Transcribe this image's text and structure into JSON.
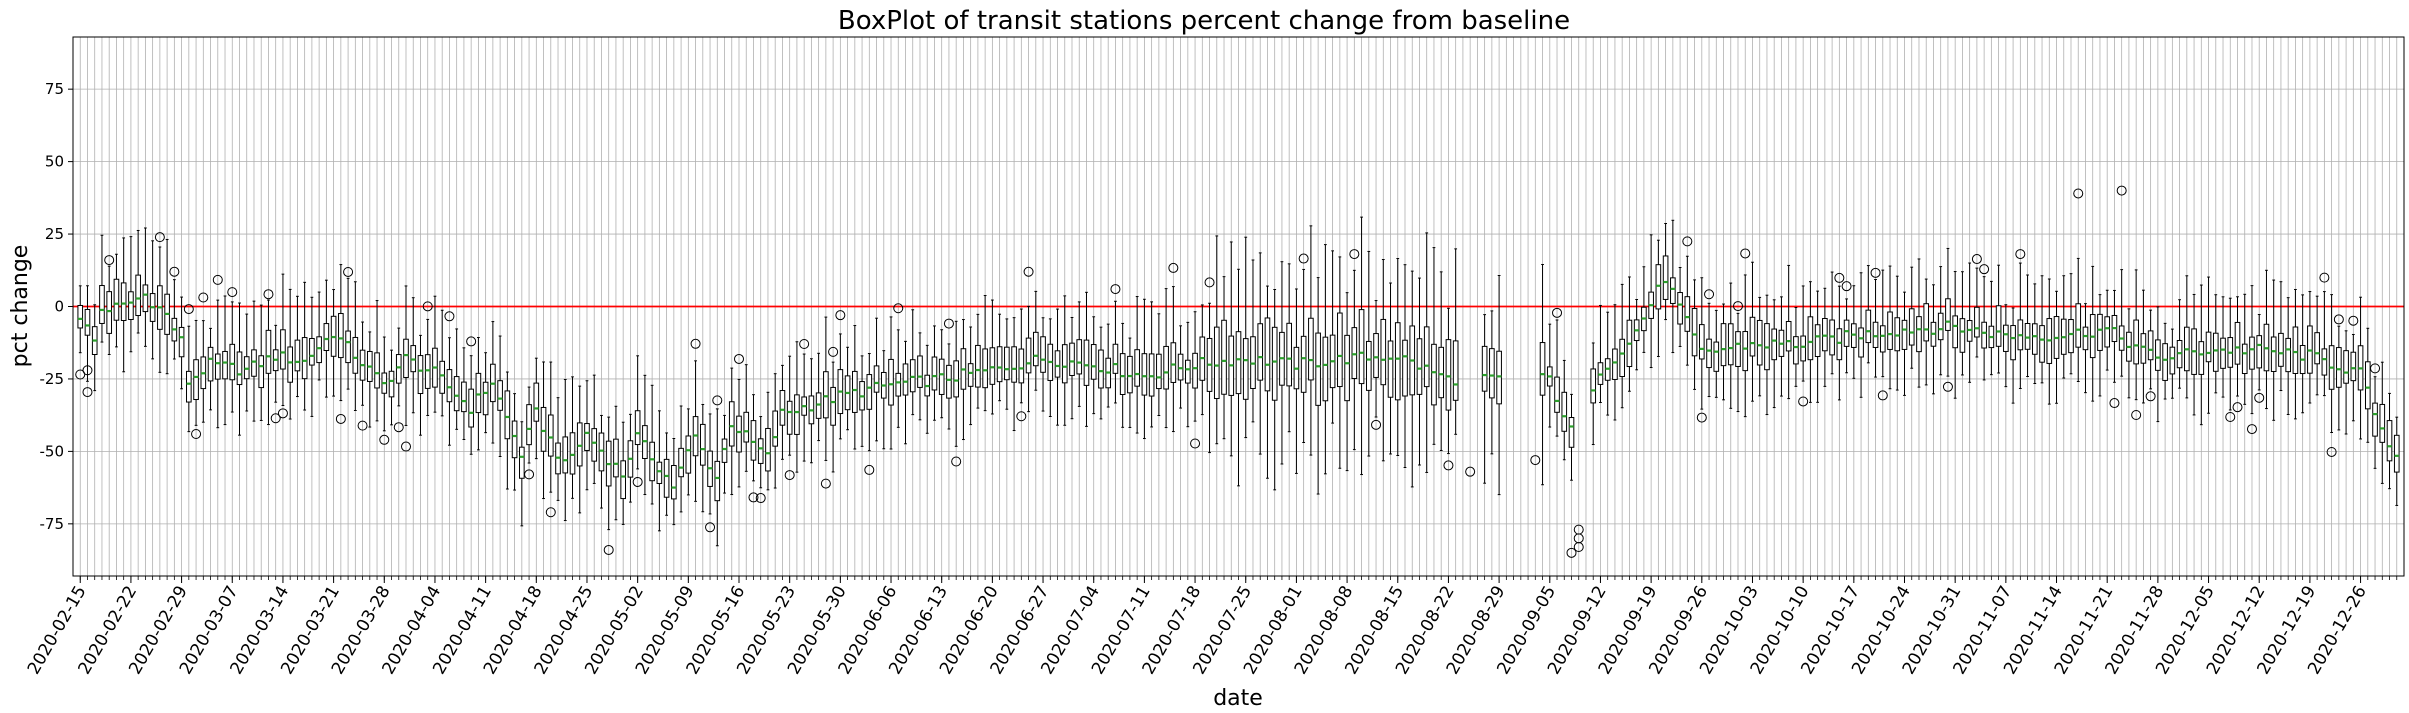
{
  "chart_data": {
    "type": "boxplot",
    "title": "BoxPlot of transit stations percent change from baseline",
    "xlabel": "date",
    "ylabel": "pct change",
    "ylim": [
      -93,
      93
    ],
    "yticks": [
      -75,
      -50,
      -25,
      0,
      25,
      50,
      75
    ],
    "grid": true,
    "reference_line": {
      "y": 0,
      "color": "#ff0000"
    },
    "box_color": "#000000",
    "median_color": "#2ca02c",
    "start_date": "2020-02-15",
    "end_date": "2020-12-31",
    "xtick_labels": [
      "2020-02-15",
      "2020-02-22",
      "2020-02-29",
      "2020-03-07",
      "2020-03-14",
      "2020-03-21",
      "2020-03-28",
      "2020-04-04",
      "2020-04-11",
      "2020-04-18",
      "2020-04-25",
      "2020-05-02",
      "2020-05-09",
      "2020-05-16",
      "2020-05-23",
      "2020-05-30",
      "2020-06-06",
      "2020-06-13",
      "2020-06-20",
      "2020-06-27",
      "2020-07-04",
      "2020-07-11",
      "2020-07-18",
      "2020-07-25",
      "2020-08-01",
      "2020-08-08",
      "2020-08-15",
      "2020-08-22",
      "2020-08-29",
      "2020-09-05",
      "2020-09-12",
      "2020-09-19",
      "2020-09-26",
      "2020-10-03",
      "2020-10-10",
      "2020-10-17",
      "2020-10-24",
      "2020-10-31",
      "2020-11-07",
      "2020-11-14",
      "2020-11-21",
      "2020-11-28",
      "2020-12-05",
      "2020-12-12",
      "2020-12-19",
      "2020-12-26"
    ],
    "missing_date_ranges": [
      [
        "2020-08-24",
        "2020-08-26"
      ],
      [
        "2020-08-30",
        "2020-09-03"
      ],
      [
        "2020-09-09",
        "2020-09-10"
      ]
    ],
    "median_profile": [
      [
        "2020-02-15",
        -3
      ],
      [
        "2020-02-17",
        -12
      ],
      [
        "2020-02-18",
        -1
      ],
      [
        "2020-02-21",
        0
      ],
      [
        "2020-02-24",
        4
      ],
      [
        "2020-02-27",
        -3
      ],
      [
        "2020-02-29",
        -12
      ],
      [
        "2020-03-01",
        -26
      ],
      [
        "2020-03-04",
        -20
      ],
      [
        "2020-03-09",
        -22
      ],
      [
        "2020-03-13",
        -17
      ],
      [
        "2020-03-17",
        -19
      ],
      [
        "2020-03-21",
        -9
      ],
      [
        "2020-03-28",
        -27
      ],
      [
        "2020-03-31",
        -18
      ],
      [
        "2020-04-04",
        -23
      ],
      [
        "2020-04-09",
        -35
      ],
      [
        "2020-04-12",
        -26
      ],
      [
        "2020-04-16",
        -51
      ],
      [
        "2020-04-18",
        -37
      ],
      [
        "2020-04-22",
        -55
      ],
      [
        "2020-04-25",
        -44
      ],
      [
        "2020-04-30",
        -58
      ],
      [
        "2020-05-02",
        -45
      ],
      [
        "2020-05-07",
        -62
      ],
      [
        "2020-05-10",
        -45
      ],
      [
        "2020-05-13",
        -59
      ],
      [
        "2020-05-15",
        -40
      ],
      [
        "2020-05-20",
        -52
      ],
      [
        "2020-05-22",
        -37
      ],
      [
        "2020-05-30",
        -31
      ],
      [
        "2020-06-06",
        -27
      ],
      [
        "2020-06-13",
        -25
      ],
      [
        "2020-06-20",
        -22
      ],
      [
        "2020-06-27",
        -18
      ],
      [
        "2020-07-04",
        -20
      ],
      [
        "2020-07-11",
        -24
      ],
      [
        "2020-07-18",
        -20
      ],
      [
        "2020-07-25",
        -18
      ],
      [
        "2020-08-01",
        -20
      ],
      [
        "2020-08-08",
        -18
      ],
      [
        "2020-08-15",
        -17
      ],
      [
        "2020-08-22",
        -25
      ],
      [
        "2020-08-29",
        -25
      ],
      [
        "2020-09-05",
        -25
      ],
      [
        "2020-09-08",
        -43
      ],
      [
        "2020-09-12",
        -22
      ],
      [
        "2020-09-16",
        -13
      ],
      [
        "2020-09-21",
        10
      ],
      [
        "2020-09-26",
        -16
      ],
      [
        "2020-10-03",
        -13
      ],
      [
        "2020-10-10",
        -13
      ],
      [
        "2020-10-17",
        -10
      ],
      [
        "2020-10-24",
        -8
      ],
      [
        "2020-10-31",
        -7
      ],
      [
        "2020-11-07",
        -10
      ],
      [
        "2020-11-14",
        -10
      ],
      [
        "2020-11-21",
        -8
      ],
      [
        "2020-11-28",
        -18
      ],
      [
        "2020-12-05",
        -15
      ],
      [
        "2020-12-12",
        -15
      ],
      [
        "2020-12-19",
        -17
      ],
      [
        "2020-12-26",
        -23
      ],
      [
        "2020-12-30",
        -50
      ]
    ],
    "highlighted_outliers": [
      [
        "2020-09-08",
        -85
      ],
      [
        "2020-09-09",
        -83
      ],
      [
        "2020-09-09",
        -80
      ],
      [
        "2020-09-09",
        -77
      ],
      [
        "2020-11-17",
        39
      ],
      [
        "2020-11-23",
        40
      ],
      [
        "2020-02-16",
        -22
      ],
      [
        "2020-03-02",
        -44
      ],
      [
        "2020-03-28",
        -46
      ],
      [
        "2020-08-25",
        -57
      ],
      [
        "2020-06-25",
        12
      ],
      [
        "2020-09-03",
        -53
      ]
    ]
  }
}
